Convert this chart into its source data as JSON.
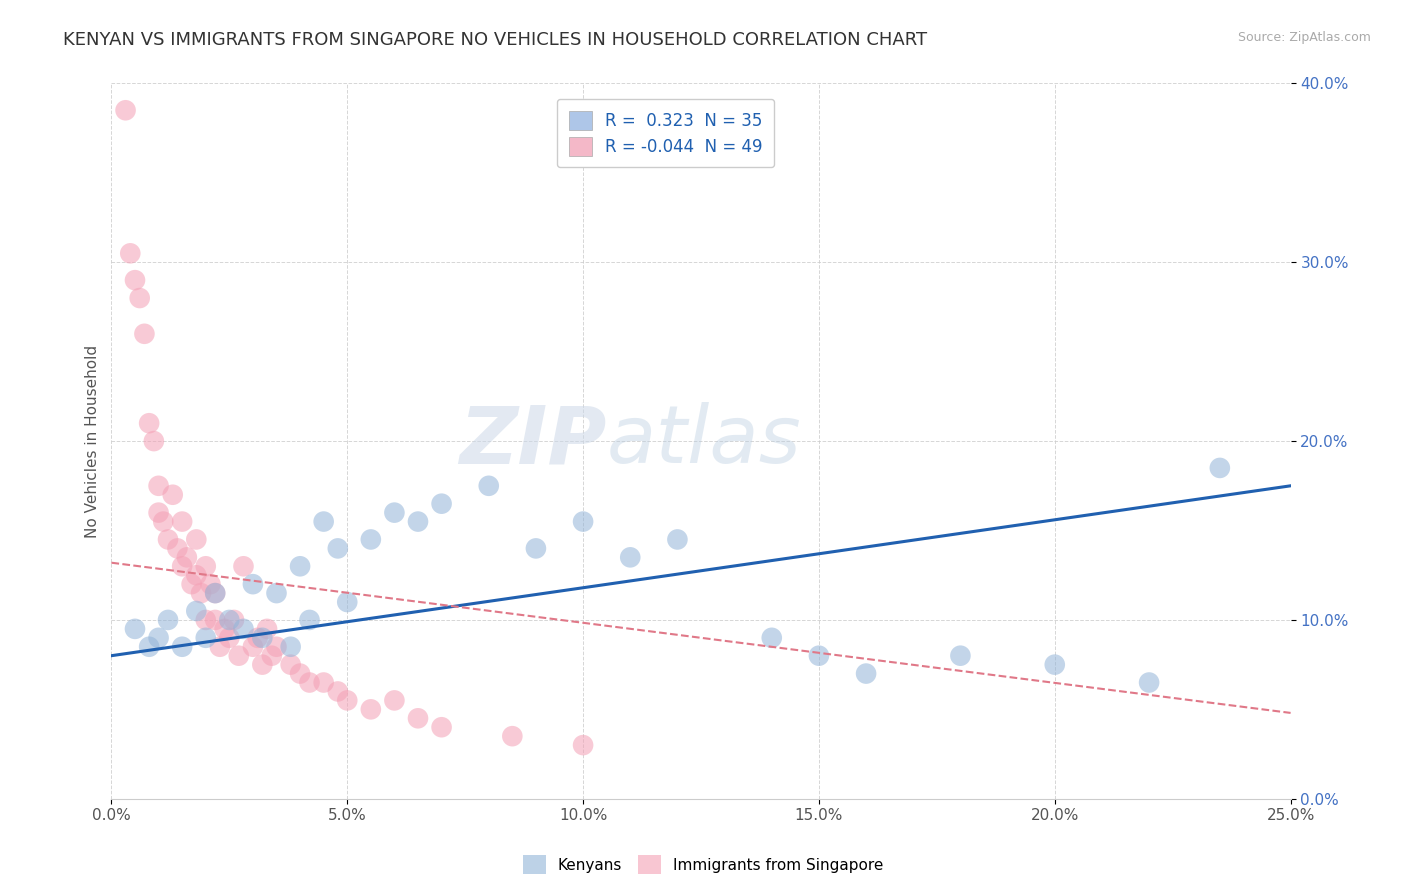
{
  "title": "KENYAN VS IMMIGRANTS FROM SINGAPORE NO VEHICLES IN HOUSEHOLD CORRELATION CHART",
  "source": "Source: ZipAtlas.com",
  "ylabel": "No Vehicles in Household",
  "xlim": [
    0.0,
    0.25
  ],
  "ylim": [
    0.0,
    0.4
  ],
  "xticks": [
    0.0,
    0.05,
    0.1,
    0.15,
    0.2,
    0.25
  ],
  "yticks": [
    0.0,
    0.1,
    0.2,
    0.3,
    0.4
  ],
  "xtick_labels": [
    "0.0%",
    "5.0%",
    "10.0%",
    "15.0%",
    "20.0%",
    "25.0%"
  ],
  "ytick_labels": [
    "0.0%",
    "10.0%",
    "20.0%",
    "30.0%",
    "40.0%"
  ],
  "legend_label_blue": "R =  0.323  N = 35",
  "legend_label_pink": "R = -0.044  N = 49",
  "legend_color_blue": "#aec6e8",
  "legend_color_pink": "#f4b8c8",
  "watermark_zip": "ZIP",
  "watermark_atlas": "atlas",
  "blue_color": "#92b4d8",
  "pink_color": "#f4a0b5",
  "blue_line_color": "#2060b0",
  "pink_line_color": "#e07888",
  "blue_scatter_x": [
    0.005,
    0.008,
    0.01,
    0.012,
    0.015,
    0.018,
    0.02,
    0.022,
    0.025,
    0.028,
    0.03,
    0.032,
    0.035,
    0.038,
    0.04,
    0.042,
    0.045,
    0.048,
    0.05,
    0.055,
    0.06,
    0.065,
    0.07,
    0.08,
    0.09,
    0.1,
    0.11,
    0.12,
    0.14,
    0.15,
    0.16,
    0.18,
    0.2,
    0.22,
    0.235
  ],
  "blue_scatter_y": [
    0.095,
    0.085,
    0.09,
    0.1,
    0.085,
    0.105,
    0.09,
    0.115,
    0.1,
    0.095,
    0.12,
    0.09,
    0.115,
    0.085,
    0.13,
    0.1,
    0.155,
    0.14,
    0.11,
    0.145,
    0.16,
    0.155,
    0.165,
    0.175,
    0.14,
    0.155,
    0.135,
    0.145,
    0.09,
    0.08,
    0.07,
    0.08,
    0.075,
    0.065,
    0.185
  ],
  "pink_scatter_x": [
    0.003,
    0.004,
    0.005,
    0.006,
    0.007,
    0.008,
    0.009,
    0.01,
    0.01,
    0.011,
    0.012,
    0.013,
    0.014,
    0.015,
    0.015,
    0.016,
    0.017,
    0.018,
    0.018,
    0.019,
    0.02,
    0.02,
    0.021,
    0.022,
    0.022,
    0.023,
    0.024,
    0.025,
    0.026,
    0.027,
    0.028,
    0.03,
    0.031,
    0.032,
    0.033,
    0.034,
    0.035,
    0.038,
    0.04,
    0.042,
    0.045,
    0.048,
    0.05,
    0.055,
    0.06,
    0.065,
    0.07,
    0.085,
    0.1
  ],
  "pink_scatter_y": [
    0.385,
    0.305,
    0.29,
    0.28,
    0.26,
    0.21,
    0.2,
    0.175,
    0.16,
    0.155,
    0.145,
    0.17,
    0.14,
    0.155,
    0.13,
    0.135,
    0.12,
    0.125,
    0.145,
    0.115,
    0.13,
    0.1,
    0.12,
    0.1,
    0.115,
    0.085,
    0.095,
    0.09,
    0.1,
    0.08,
    0.13,
    0.085,
    0.09,
    0.075,
    0.095,
    0.08,
    0.085,
    0.075,
    0.07,
    0.065,
    0.065,
    0.06,
    0.055,
    0.05,
    0.055,
    0.045,
    0.04,
    0.035,
    0.03
  ],
  "blue_line_x0": 0.0,
  "blue_line_y0": 0.08,
  "blue_line_x1": 0.25,
  "blue_line_y1": 0.175,
  "pink_line_x0": 0.0,
  "pink_line_y0": 0.132,
  "pink_line_x1": 0.25,
  "pink_line_y1": 0.048,
  "background_color": "#ffffff",
  "grid_color": "#cccccc",
  "title_fontsize": 13,
  "axis_fontsize": 11,
  "tick_fontsize": 11,
  "axis_label_color": "#4472c4",
  "tick_label_color": "#4472c4"
}
